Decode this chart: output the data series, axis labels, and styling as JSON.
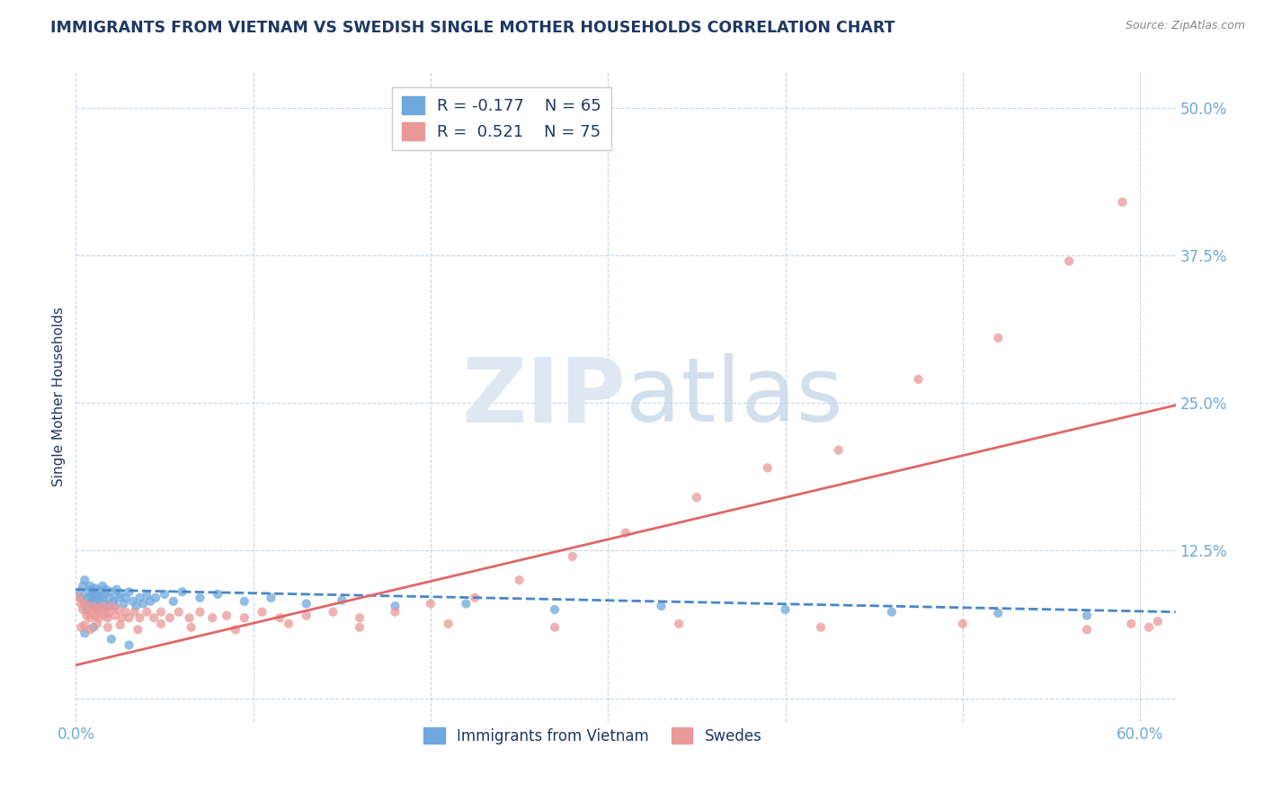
{
  "title": "IMMIGRANTS FROM VIETNAM VS SWEDISH SINGLE MOTHER HOUSEHOLDS CORRELATION CHART",
  "source": "Source: ZipAtlas.com",
  "ylabel": "Single Mother Households",
  "legend_labels": [
    "Immigrants from Vietnam",
    "Swedes"
  ],
  "legend_r_blue": "R = -0.177",
  "legend_n_blue": "N = 65",
  "legend_r_pink": "R =  0.521",
  "legend_n_pink": "N = 75",
  "blue_color": "#6fa8dc",
  "pink_color": "#ea9999",
  "blue_line_color": "#4a86c8",
  "pink_line_color": "#e06666",
  "title_color": "#1f3864",
  "axis_color": "#6fa8dc",
  "grid_color": "#b8cce4",
  "watermark_color": "#dce6f1",
  "xlim": [
    0.0,
    0.62
  ],
  "ylim": [
    -0.02,
    0.53
  ],
  "x_ticks": [
    0.0,
    0.1,
    0.2,
    0.3,
    0.4,
    0.5,
    0.6
  ],
  "y_ticks": [
    0.0,
    0.125,
    0.25,
    0.375,
    0.5
  ],
  "blue_trend_x": [
    0.0,
    0.62
  ],
  "blue_trend_y": [
    0.092,
    0.073
  ],
  "pink_trend_x": [
    0.0,
    0.62
  ],
  "pink_trend_y": [
    0.028,
    0.248
  ],
  "blue_scatter_x": [
    0.002,
    0.003,
    0.004,
    0.005,
    0.005,
    0.006,
    0.007,
    0.007,
    0.008,
    0.008,
    0.009,
    0.009,
    0.01,
    0.01,
    0.011,
    0.011,
    0.012,
    0.012,
    0.013,
    0.013,
    0.014,
    0.015,
    0.015,
    0.016,
    0.016,
    0.017,
    0.018,
    0.019,
    0.02,
    0.021,
    0.022,
    0.023,
    0.024,
    0.025,
    0.027,
    0.028,
    0.03,
    0.032,
    0.034,
    0.036,
    0.038,
    0.04,
    0.042,
    0.045,
    0.05,
    0.055,
    0.06,
    0.07,
    0.08,
    0.095,
    0.11,
    0.13,
    0.15,
    0.18,
    0.22,
    0.27,
    0.33,
    0.4,
    0.46,
    0.52,
    0.57,
    0.005,
    0.01,
    0.02,
    0.03
  ],
  "blue_scatter_y": [
    0.09,
    0.085,
    0.095,
    0.08,
    0.1,
    0.075,
    0.09,
    0.085,
    0.08,
    0.095,
    0.085,
    0.092,
    0.078,
    0.088,
    0.082,
    0.093,
    0.087,
    0.075,
    0.083,
    0.091,
    0.078,
    0.085,
    0.095,
    0.08,
    0.088,
    0.092,
    0.078,
    0.085,
    0.09,
    0.082,
    0.078,
    0.092,
    0.085,
    0.088,
    0.08,
    0.085,
    0.09,
    0.082,
    0.078,
    0.085,
    0.08,
    0.087,
    0.082,
    0.085,
    0.088,
    0.082,
    0.09,
    0.085,
    0.088,
    0.082,
    0.085,
    0.08,
    0.083,
    0.078,
    0.08,
    0.075,
    0.078,
    0.075,
    0.073,
    0.072,
    0.07,
    0.055,
    0.06,
    0.05,
    0.045
  ],
  "pink_scatter_x": [
    0.002,
    0.003,
    0.004,
    0.005,
    0.006,
    0.007,
    0.008,
    0.009,
    0.01,
    0.011,
    0.012,
    0.013,
    0.014,
    0.015,
    0.016,
    0.017,
    0.018,
    0.019,
    0.02,
    0.022,
    0.024,
    0.026,
    0.028,
    0.03,
    0.033,
    0.036,
    0.04,
    0.044,
    0.048,
    0.053,
    0.058,
    0.064,
    0.07,
    0.077,
    0.085,
    0.095,
    0.105,
    0.115,
    0.13,
    0.145,
    0.16,
    0.18,
    0.2,
    0.225,
    0.25,
    0.28,
    0.31,
    0.35,
    0.39,
    0.43,
    0.475,
    0.52,
    0.56,
    0.59,
    0.003,
    0.005,
    0.008,
    0.012,
    0.018,
    0.025,
    0.035,
    0.048,
    0.065,
    0.09,
    0.12,
    0.16,
    0.21,
    0.27,
    0.34,
    0.42,
    0.5,
    0.57,
    0.595,
    0.605,
    0.61
  ],
  "pink_scatter_y": [
    0.085,
    0.08,
    0.075,
    0.08,
    0.07,
    0.075,
    0.068,
    0.073,
    0.078,
    0.07,
    0.075,
    0.068,
    0.073,
    0.078,
    0.07,
    0.075,
    0.068,
    0.073,
    0.078,
    0.07,
    0.075,
    0.068,
    0.073,
    0.068,
    0.073,
    0.068,
    0.073,
    0.068,
    0.073,
    0.068,
    0.073,
    0.068,
    0.073,
    0.068,
    0.07,
    0.068,
    0.073,
    0.068,
    0.07,
    0.073,
    0.068,
    0.073,
    0.08,
    0.085,
    0.1,
    0.12,
    0.14,
    0.17,
    0.195,
    0.21,
    0.27,
    0.305,
    0.37,
    0.42,
    0.06,
    0.062,
    0.058,
    0.063,
    0.06,
    0.062,
    0.058,
    0.063,
    0.06,
    0.058,
    0.063,
    0.06,
    0.063,
    0.06,
    0.063,
    0.06,
    0.063,
    0.058,
    0.063,
    0.06,
    0.065
  ]
}
